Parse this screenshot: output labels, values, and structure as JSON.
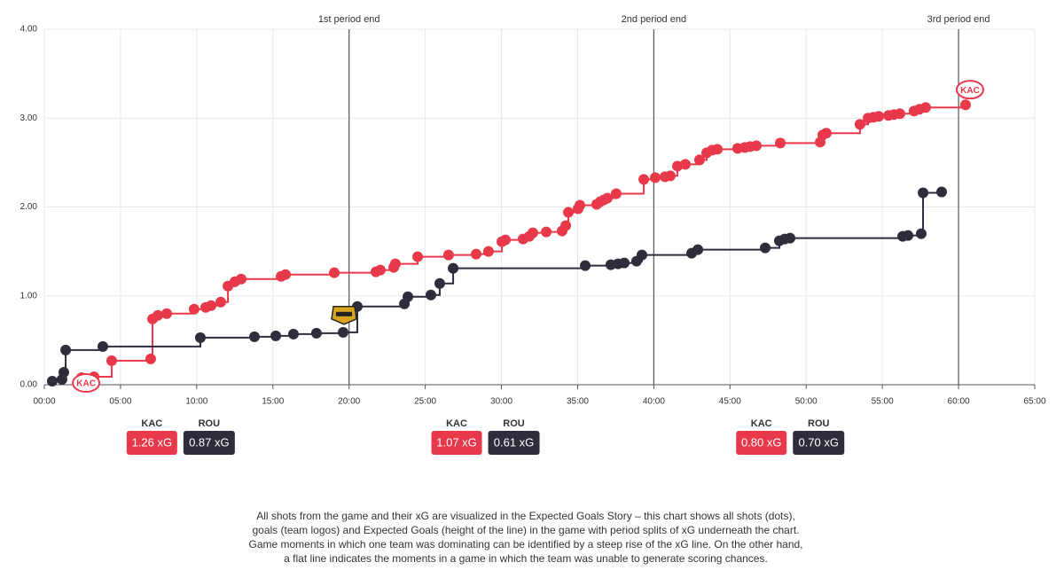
{
  "chart_data": {
    "type": "step",
    "xlim": [
      0,
      65
    ],
    "ylim": [
      0,
      4
    ],
    "xticks": [
      {
        "value": 0,
        "label": "00:00"
      },
      {
        "value": 5,
        "label": "05:00"
      },
      {
        "value": 10,
        "label": "10:00"
      },
      {
        "value": 15,
        "label": "15:00"
      },
      {
        "value": 20,
        "label": "20:00"
      },
      {
        "value": 25,
        "label": "25:00"
      },
      {
        "value": 30,
        "label": "30:00"
      },
      {
        "value": 35,
        "label": "35:00"
      },
      {
        "value": 40,
        "label": "40:00"
      },
      {
        "value": 45,
        "label": "45:00"
      },
      {
        "value": 50,
        "label": "50:00"
      },
      {
        "value": 55,
        "label": "55:00"
      },
      {
        "value": 60,
        "label": "60:00"
      },
      {
        "value": 65,
        "label": "65:00"
      }
    ],
    "yticks": [
      {
        "value": 0,
        "label": "0.00"
      },
      {
        "value": 1,
        "label": "1.00"
      },
      {
        "value": 2,
        "label": "2.00"
      },
      {
        "value": 3,
        "label": "3.00"
      },
      {
        "value": 4,
        "label": "4.00"
      }
    ],
    "grid": true,
    "annotations": [
      {
        "x": 20,
        "label": "1st period end"
      },
      {
        "x": 40,
        "label": "2nd period end"
      },
      {
        "x": 60,
        "label": "3rd period end"
      }
    ],
    "series": [
      {
        "name": "KAC",
        "color": "#e8394a",
        "x": [
          2.44,
          3.26,
          4.42,
          6.98,
          7.1,
          7.45,
          8.03,
          9.83,
          10.59,
          10.94,
          11.58,
          12.05,
          12.51,
          12.92,
          15.54,
          15.83,
          19.03,
          21.76,
          22.05,
          22.93,
          23.04,
          24.5,
          26.53,
          28.34,
          29.15,
          30.03,
          30.26,
          31.42,
          31.83,
          32.06,
          32.94,
          33.98,
          34.22,
          34.39,
          35.03,
          35.15,
          36.25,
          36.49,
          36.72,
          36.95,
          37.53,
          39.34,
          40.09,
          40.73,
          41.08,
          41.55,
          42.07,
          43.0,
          43.47,
          43.82,
          44.17,
          45.5,
          45.97,
          46.32,
          46.73,
          48.3,
          50.92,
          51.09,
          51.32,
          53.53,
          54.06,
          54.41,
          54.76,
          55.4,
          55.75,
          56.15,
          57.08,
          57.43,
          57.84,
          60.46
        ],
        "values": [
          0.08,
          0.09,
          0.27,
          0.29,
          0.74,
          0.78,
          0.8,
          0.85,
          0.87,
          0.89,
          0.93,
          1.11,
          1.16,
          1.19,
          1.22,
          1.24,
          1.26,
          1.27,
          1.29,
          1.32,
          1.36,
          1.44,
          1.46,
          1.47,
          1.5,
          1.61,
          1.63,
          1.64,
          1.67,
          1.71,
          1.72,
          1.73,
          1.79,
          1.94,
          1.98,
          2.02,
          2.03,
          2.06,
          2.08,
          2.1,
          2.15,
          2.31,
          2.33,
          2.34,
          2.35,
          2.46,
          2.48,
          2.53,
          2.61,
          2.64,
          2.65,
          2.66,
          2.67,
          2.68,
          2.69,
          2.72,
          2.73,
          2.81,
          2.83,
          2.93,
          3.0,
          3.01,
          3.02,
          3.03,
          3.04,
          3.05,
          3.08,
          3.1,
          3.12,
          3.15
        ],
        "goals": {
          "x": [
            2.74,
            60.75
          ],
          "values": [
            0.02,
            3.32
          ]
        }
      },
      {
        "name": "ROU",
        "color": "#2e2d3b",
        "x": [
          0.52,
          1.16,
          1.28,
          1.4,
          3.84,
          10.24,
          13.79,
          15.19,
          16.35,
          17.86,
          19.61,
          20.54,
          23.63,
          23.86,
          25.37,
          25.95,
          26.83,
          35.5,
          37.18,
          37.65,
          38.06,
          38.87,
          39.22,
          42.48,
          42.89,
          47.31,
          48.24,
          48.59,
          48.94,
          56.33,
          56.68,
          57.55,
          57.67,
          58.89
        ],
        "values": [
          0.04,
          0.06,
          0.14,
          0.39,
          0.43,
          0.53,
          0.54,
          0.55,
          0.57,
          0.58,
          0.59,
          0.88,
          0.91,
          0.99,
          1.01,
          1.14,
          1.31,
          1.34,
          1.35,
          1.36,
          1.37,
          1.39,
          1.46,
          1.48,
          1.52,
          1.54,
          1.62,
          1.64,
          1.65,
          1.67,
          1.68,
          1.7,
          2.16,
          2.17
        ],
        "goals": {
          "x": [
            19.67
          ],
          "values": [
            0.8
          ]
        }
      }
    ],
    "period_xg": [
      {
        "x": 10,
        "values": [
          1.26,
          0.87
        ],
        "value_labels": [
          "1.26 xG",
          "0.87 xG"
        ]
      },
      {
        "x": 30,
        "values": [
          1.07,
          0.61
        ],
        "value_labels": [
          "1.07 xG",
          "0.61 xG"
        ]
      },
      {
        "x": 50,
        "values": [
          0.8,
          0.7
        ],
        "value_labels": [
          "0.80 xG",
          "0.70 xG"
        ]
      }
    ],
    "caption": [
      "All shots from the game and their xG are visualized in the Expected Goals Story – this chart shows all shots (dots),",
      "goals (team logos) and Expected Goals (height of the line) in the game with period splits of xG underneath the chart.",
      "Game moments in which one team was dominating can be identified by a steep rise of the xG line. On the other hand,",
      "a flat line indicates the moments in a game in which the team was unable to generate scoring chances."
    ]
  }
}
